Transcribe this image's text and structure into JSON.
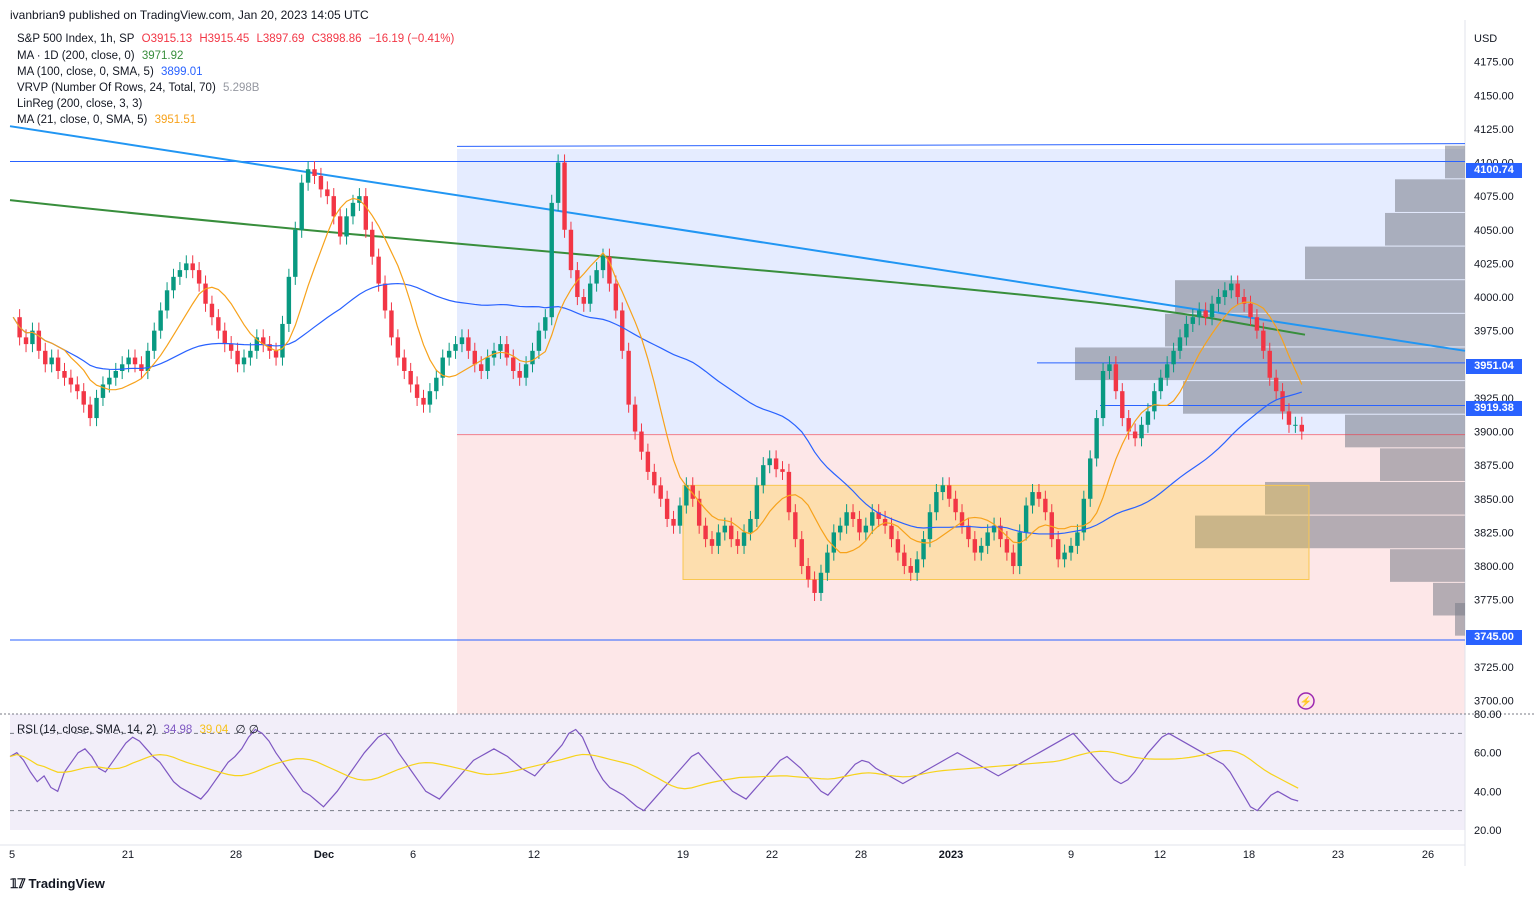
{
  "header": {
    "publish_line": "ivanbrian9 published on TradingView.com, Jan 20, 2023 14:05 UTC"
  },
  "legend": {
    "title": "S&P 500 Index, 1h, SP",
    "ohlc": {
      "o": "O3915.13",
      "h": "H3915.45",
      "l": "L3897.69",
      "c": "C3898.86",
      "chg": "−16.19 (−0.41%)"
    },
    "ma200": {
      "label": "MA · 1D (200, close, 0)",
      "value": "3971.92",
      "color": "#388e3c"
    },
    "ma100": {
      "label": "MA (100, close, 0, SMA, 5)",
      "value": "3899.01",
      "color": "#2962ff"
    },
    "vrvp": {
      "label": "VRVP (Number Of Rows, 24, Total, 70)",
      "value": "5.298B"
    },
    "linreg": {
      "label": "LinReg (200, close, 3, 3)"
    },
    "ma21": {
      "label": "MA (21, close, 0, SMA, 5)",
      "value": "3951.51",
      "color": "#f7a21b"
    },
    "rsi": {
      "label": "RSI (14, close, SMA, 14, 2)",
      "value": "34.98",
      "value2": "39.04",
      "extra": "∅ ∅"
    }
  },
  "footer": {
    "brand": "TradingView"
  },
  "chart_data": {
    "type": "line",
    "currency": "USD",
    "price_range": [
      3690,
      4200
    ],
    "y_ticks": [
      3700,
      3725,
      3750,
      3775,
      3800,
      3825,
      3850,
      3875,
      3900,
      3925,
      3950,
      3975,
      4000,
      4025,
      4050,
      4075,
      4100,
      4125,
      4150,
      4175
    ],
    "y_tick_labels": [
      "3700.00",
      "3725.00",
      "3750.00",
      "3775.00",
      "3800.00",
      "3825.00",
      "3850.00",
      "3875.00",
      "3900.00",
      "3925.00",
      "3950.00",
      "3975.00",
      "4000.00",
      "4025.00",
      "4050.00",
      "4075.00",
      "4100.00",
      "4125.00",
      "4150.00",
      "4175.00"
    ],
    "x_tick_labels": [
      "5",
      "21",
      "28",
      "Dec",
      "6",
      "12",
      "19",
      "22",
      "28",
      "2023",
      "9",
      "12",
      "18",
      "23",
      "26"
    ],
    "price_tags": [
      {
        "value": "4100.74",
        "color": "#2962ff"
      },
      {
        "value": "3951.04",
        "color": "#2962ff"
      },
      {
        "value": "3919.38",
        "color": "#2962ff"
      },
      {
        "value": "3745.00",
        "color": "#2962ff"
      }
    ],
    "horizontal_levels": [
      4100.74,
      3951.04,
      3919.38,
      3745.0,
      3897.7
    ],
    "consolidation_box": {
      "low": 3790,
      "high": 3860
    },
    "close_series": [
      3985,
      3970,
      3965,
      3975,
      3960,
      3950,
      3955,
      3945,
      3940,
      3935,
      3930,
      3920,
      3910,
      3925,
      3935,
      3940,
      3945,
      3950,
      3955,
      3950,
      3945,
      3960,
      3975,
      3990,
      4005,
      4015,
      4020,
      4025,
      4020,
      4010,
      3995,
      3985,
      3975,
      3965,
      3960,
      3950,
      3955,
      3960,
      3970,
      3965,
      3960,
      3955,
      3980,
      4015,
      4050,
      4085,
      4095,
      4090,
      4080,
      4075,
      4060,
      4045,
      4060,
      4070,
      4075,
      4050,
      4030,
      4010,
      3990,
      3970,
      3955,
      3945,
      3935,
      3925,
      3920,
      3930,
      3940,
      3955,
      3960,
      3965,
      3970,
      3960,
      3950,
      3945,
      3955,
      3960,
      3965,
      3955,
      3945,
      3940,
      3950,
      3960,
      3975,
      3985,
      4070,
      4100,
      4050,
      4020,
      4000,
      3995,
      4010,
      4020,
      4030,
      4010,
      3990,
      3960,
      3920,
      3900,
      3885,
      3870,
      3860,
      3850,
      3835,
      3830,
      3845,
      3860,
      3850,
      3830,
      3820,
      3815,
      3825,
      3830,
      3820,
      3815,
      3825,
      3835,
      3860,
      3875,
      3880,
      3872,
      3870,
      3840,
      3820,
      3800,
      3790,
      3780,
      3795,
      3810,
      3825,
      3830,
      3840,
      3835,
      3825,
      3830,
      3840,
      3835,
      3830,
      3820,
      3810,
      3800,
      3795,
      3805,
      3820,
      3840,
      3855,
      3860,
      3850,
      3840,
      3830,
      3820,
      3810,
      3815,
      3825,
      3830,
      3820,
      3810,
      3800,
      3825,
      3845,
      3855,
      3850,
      3840,
      3820,
      3805,
      3810,
      3815,
      3825,
      3850,
      3880,
      3910,
      3945,
      3950,
      3930,
      3910,
      3900,
      3895,
      3905,
      3915,
      3930,
      3940,
      3950,
      3960,
      3970,
      3980,
      3985,
      3990,
      3985,
      3995,
      4000,
      4005,
      4010,
      4000,
      3995,
      3985,
      3975,
      3960,
      3940,
      3930,
      3915,
      3905,
      3905,
      3900
    ],
    "rsi_ticks": [
      20,
      40,
      60,
      80
    ],
    "rsi_levels": {
      "upper": 70,
      "lower": 30
    },
    "rsi_series": [
      58,
      60,
      56,
      50,
      45,
      48,
      42,
      40,
      50,
      55,
      60,
      62,
      58,
      52,
      50,
      55,
      60,
      65,
      68,
      66,
      62,
      58,
      55,
      50,
      45,
      42,
      40,
      38,
      36,
      40,
      45,
      50,
      55,
      58,
      62,
      68,
      72,
      70,
      66,
      60,
      55,
      50,
      45,
      40,
      38,
      35,
      32,
      36,
      40,
      45,
      50,
      55,
      60,
      64,
      68,
      70,
      66,
      60,
      55,
      50,
      45,
      40,
      38,
      36,
      40,
      44,
      48,
      52,
      56,
      58,
      60,
      62,
      60,
      58,
      55,
      52,
      50,
      48,
      52,
      56,
      60,
      64,
      70,
      72,
      68,
      60,
      52,
      46,
      42,
      40,
      38,
      35,
      32,
      30,
      34,
      38,
      42,
      46,
      50,
      54,
      58,
      60,
      56,
      52,
      48,
      44,
      40,
      38,
      36,
      40,
      44,
      48,
      52,
      56,
      58,
      55,
      52,
      48,
      44,
      40,
      38,
      42,
      46,
      50,
      54,
      56,
      55,
      52,
      50,
      48,
      46,
      44,
      46,
      48,
      50,
      52,
      54,
      56,
      58,
      60,
      58,
      56,
      54,
      52,
      50,
      48,
      50,
      52,
      54,
      56,
      58,
      60,
      62,
      64,
      66,
      68,
      70,
      66,
      62,
      58,
      54,
      50,
      46,
      44,
      46,
      50,
      55,
      60,
      64,
      68,
      70,
      68,
      66,
      64,
      62,
      60,
      58,
      56,
      54,
      50,
      44,
      38,
      32,
      30,
      34,
      38,
      40,
      38,
      36,
      35
    ]
  }
}
